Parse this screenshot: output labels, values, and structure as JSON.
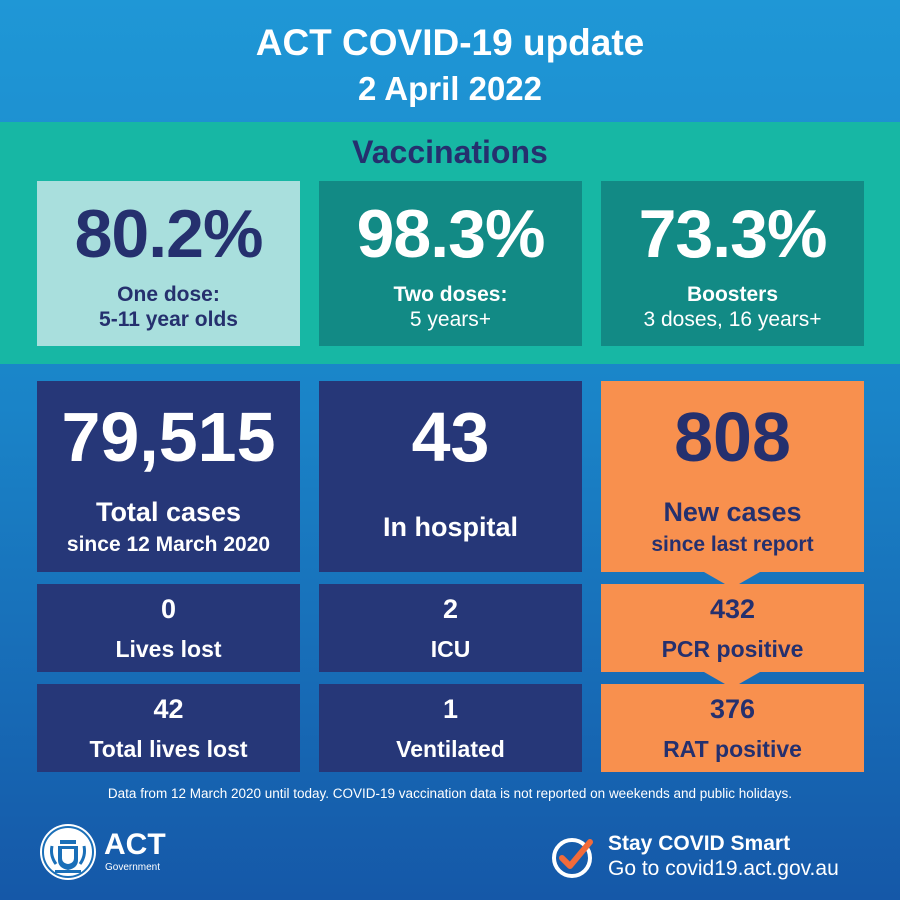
{
  "header": {
    "title": "ACT COVID-19 update",
    "date": "2 April 2022"
  },
  "vaccinations": {
    "title": "Vaccinations",
    "items": [
      {
        "value": "80.2%",
        "label1": "One dose:",
        "label2": "5-11 year olds"
      },
      {
        "value": "98.3%",
        "label1": "Two doses:",
        "label2": "5 years+"
      },
      {
        "value": "73.3%",
        "label1": "Boosters",
        "label2": "3 doses, 16 years+"
      }
    ]
  },
  "cases": {
    "total": {
      "value": "79,515",
      "label1": "Total cases",
      "label2": "since 12 March 2020"
    },
    "hospital": {
      "value": "43",
      "label": "In hospital"
    },
    "new": {
      "value": "808",
      "label1": "New cases",
      "label2": "since last report"
    }
  },
  "details": {
    "lives_lost": {
      "value": "0",
      "label": "Lives lost"
    },
    "icu": {
      "value": "2",
      "label": "ICU"
    },
    "pcr": {
      "value": "432",
      "label": "PCR positive"
    },
    "total_lives_lost": {
      "value": "42",
      "label": "Total lives lost"
    },
    "ventilated": {
      "value": "1",
      "label": "Ventilated"
    },
    "rat": {
      "value": "376",
      "label": "RAT positive"
    }
  },
  "footer": {
    "note": "Data from 12 March 2020 until today.  COVID-19 vaccination data is not reported on weekends and public holidays.",
    "logo_text": "ACT",
    "logo_sub": "Government",
    "stay_title": "Stay COVID Smart",
    "stay_link": "Go to covid19.act.gov.au"
  },
  "colors": {
    "navy": "#263778",
    "teal": "#17b7a4",
    "dark_teal": "#128a85",
    "light_teal": "#a9dfdd",
    "orange": "#f8904e",
    "blue": "#1f97d6"
  }
}
